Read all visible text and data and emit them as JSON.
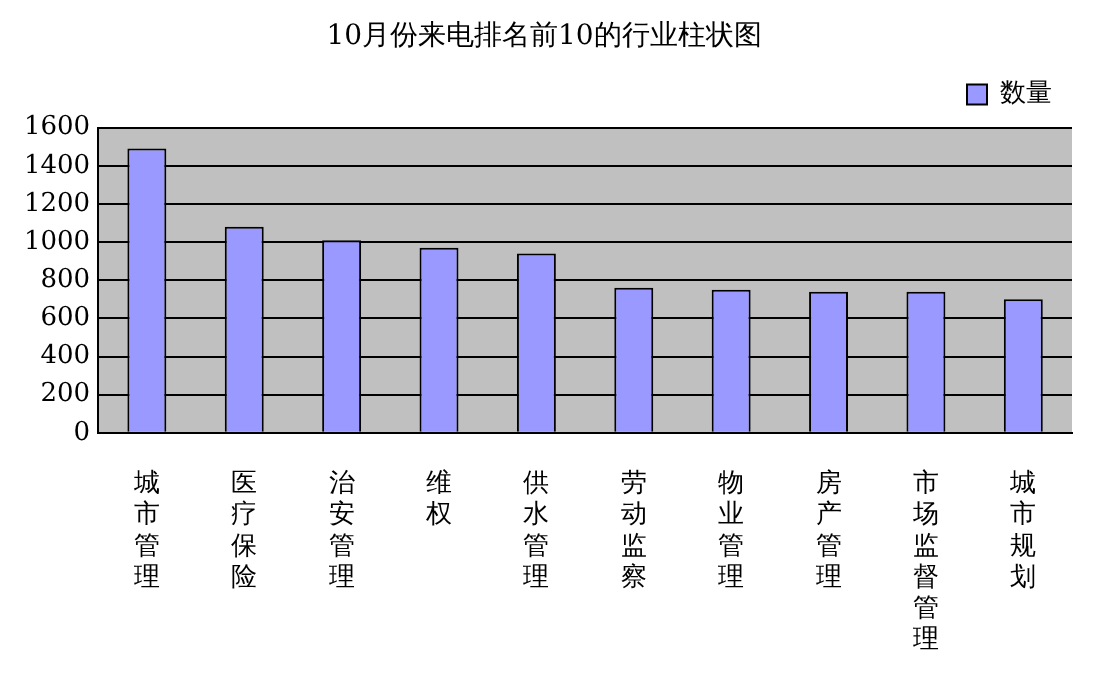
{
  "chart_data": {
    "type": "bar",
    "title": "10月份来电排名前10的行业柱状图",
    "categories": [
      "城市管理",
      "医疗保险",
      "治安管理",
      "维权",
      "供水管理",
      "劳动监察",
      "物业管理",
      "房产管理",
      "市场监督管理",
      "城市规划"
    ],
    "series": [
      {
        "name": "数量",
        "color": "#9999ff",
        "values": [
          1490,
          1080,
          1010,
          970,
          940,
          760,
          750,
          740,
          740,
          700
        ]
      }
    ],
    "ylim": [
      0,
      1600
    ],
    "yticks": [
      0,
      200,
      400,
      600,
      800,
      1000,
      1200,
      1400,
      1600
    ],
    "grid": "y",
    "legend": "top right"
  }
}
